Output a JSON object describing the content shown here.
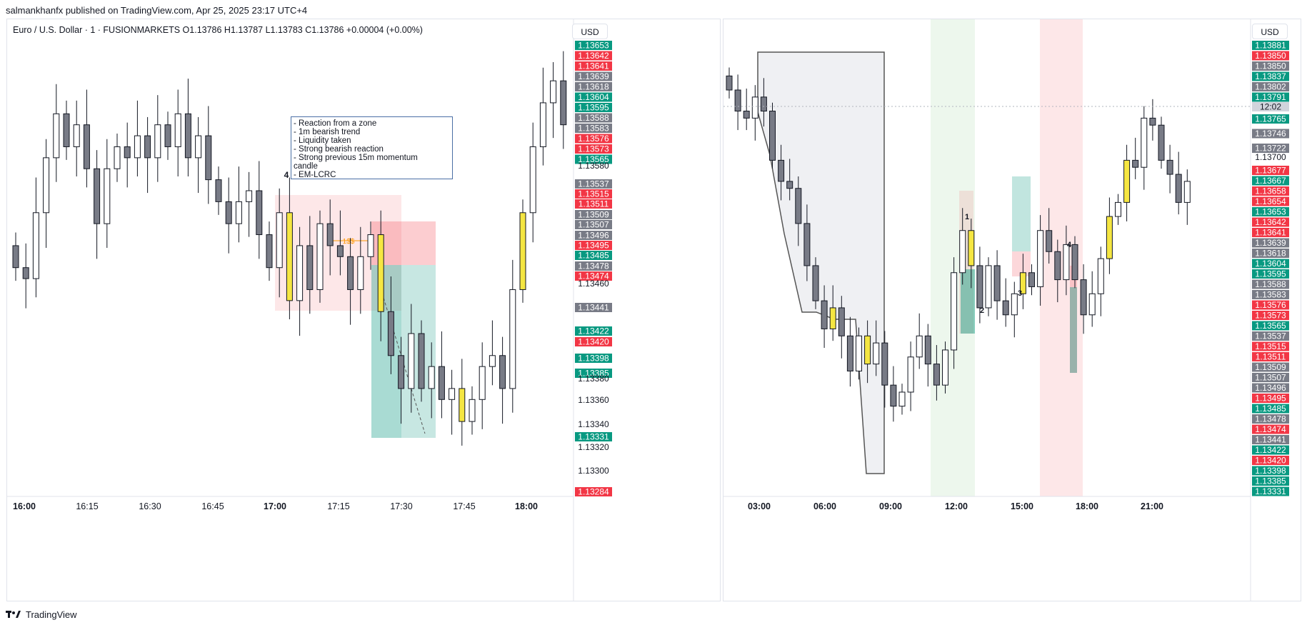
{
  "published_text": "salmankhanfx published on TradingView.com, Apr 25, 2025 23:17 UTC+4",
  "footer": {
    "logo_icon": "tradingview-logo-icon",
    "brand": "TradingView"
  },
  "colors": {
    "red": "#f23645",
    "green": "#089981",
    "grey": "#787b86",
    "up": "#ffffff",
    "highlight": "#f5e642"
  },
  "left_chart": {
    "symbol_header": "Euro / U.S. Dollar · 1 · FUSIONMARKETS  O1.13786  H1.13787  L1.13783  C1.13786  +0.00004 (+0.00%)",
    "currency": "USD",
    "note_lines": [
      "- Reaction from a zone",
      "- 1m bearish trend",
      "- Liquidity taken",
      "- Strong bearish reaction",
      "- Strong previous 15m momentum",
      "candle",
      "- EM-LCRC"
    ],
    "marker_4": "4",
    "liquidity_label": "1$$",
    "chart_data": {
      "type": "candlestick",
      "timeframe": "1",
      "x_ticks": [
        "16:00",
        "16:15",
        "16:30",
        "16:45",
        "17:00",
        "17:15",
        "17:30",
        "17:45",
        "18:00"
      ],
      "y_ticks": [
        "1.13580",
        "1.13460",
        "1.13380",
        "1.13360",
        "1.13340",
        "1.13320",
        "1.13300"
      ],
      "ylim": [
        1.1328,
        1.1367
      ],
      "price_labels": [
        {
          "value": "1.13653",
          "color": "green"
        },
        {
          "value": "1.13642",
          "color": "red"
        },
        {
          "value": "1.13641",
          "color": "red"
        },
        {
          "value": "1.13639",
          "color": "grey"
        },
        {
          "value": "1.13618",
          "color": "grey"
        },
        {
          "value": "1.13604",
          "color": "green"
        },
        {
          "value": "1.13595",
          "color": "green"
        },
        {
          "value": "1.13588",
          "color": "grey"
        },
        {
          "value": "1.13583",
          "color": "grey"
        },
        {
          "value": "1.13576",
          "color": "red"
        },
        {
          "value": "1.13573",
          "color": "red"
        },
        {
          "value": "1.13565",
          "color": "green"
        },
        {
          "value": "1.13537",
          "color": "grey"
        },
        {
          "value": "1.13515",
          "color": "red"
        },
        {
          "value": "1.13511",
          "color": "red"
        },
        {
          "value": "1.13509",
          "color": "grey"
        },
        {
          "value": "1.13507",
          "color": "grey"
        },
        {
          "value": "1.13496",
          "color": "grey"
        },
        {
          "value": "1.13495",
          "color": "red"
        },
        {
          "value": "1.13485",
          "color": "green"
        },
        {
          "value": "1.13478",
          "color": "grey"
        },
        {
          "value": "1.13474",
          "color": "red"
        },
        {
          "value": "1.13441",
          "color": "grey"
        },
        {
          "value": "1.13422",
          "color": "green"
        },
        {
          "value": "1.13420",
          "color": "red"
        },
        {
          "value": "1.13398",
          "color": "green"
        },
        {
          "value": "1.13385",
          "color": "green"
        },
        {
          "value": "1.13331",
          "color": "green"
        },
        {
          "value": "1.13284",
          "color": "red"
        }
      ],
      "series": [
        {
          "name": "",
          "close_path": [
            1.1347,
            1.1346,
            1.1352,
            1.1357,
            1.1361,
            1.1358,
            1.136,
            1.1356,
            1.1351,
            1.1356,
            1.1358,
            1.1357,
            1.1359,
            1.1357,
            1.136,
            1.1358,
            1.1361,
            1.1357,
            1.1359,
            1.1355,
            1.1353,
            1.1351,
            1.1353,
            1.1354,
            1.135,
            1.1347,
            1.1352,
            1.1344,
            1.1349,
            1.1345,
            1.1351,
            1.1349,
            1.1348,
            1.1345,
            1.1348,
            1.135,
            1.1343,
            1.1339,
            1.1336,
            1.1341,
            1.1336,
            1.1338,
            1.1335,
            1.1336,
            1.1333,
            1.1335,
            1.1338,
            1.1339,
            1.1336,
            1.1345,
            1.1352,
            1.1358,
            1.1362,
            1.1364,
            1.136
          ]
        }
      ]
    }
  },
  "right_chart": {
    "currency": "USD",
    "current_time_label": "12:02",
    "markers": [
      "1",
      "2",
      "3",
      "4"
    ],
    "chart_data": {
      "type": "candlestick",
      "x_ticks": [
        "03:00",
        "06:00",
        "09:00",
        "12:00",
        "15:00",
        "18:00",
        "21:00"
      ],
      "y_ticks": [
        "1.13700"
      ],
      "ylim": [
        1.1329,
        1.139
      ],
      "price_labels": [
        {
          "value": "1.13881",
          "color": "green"
        },
        {
          "value": "1.13850",
          "color": "red"
        },
        {
          "value": "1.13850",
          "color": "grey"
        },
        {
          "value": "1.13837",
          "color": "green"
        },
        {
          "value": "1.13802",
          "color": "grey"
        },
        {
          "value": "1.13791",
          "color": "green"
        },
        {
          "value": "1.13765",
          "color": "green"
        },
        {
          "value": "1.13746",
          "color": "grey"
        },
        {
          "value": "1.13722",
          "color": "grey"
        },
        {
          "value": "1.13677",
          "color": "red"
        },
        {
          "value": "1.13667",
          "color": "green"
        },
        {
          "value": "1.13658",
          "color": "red"
        },
        {
          "value": "1.13654",
          "color": "red"
        },
        {
          "value": "1.13653",
          "color": "green"
        },
        {
          "value": "1.13642",
          "color": "red"
        },
        {
          "value": "1.13641",
          "color": "red"
        },
        {
          "value": "1.13639",
          "color": "grey"
        },
        {
          "value": "1.13618",
          "color": "grey"
        },
        {
          "value": "1.13604",
          "color": "green"
        },
        {
          "value": "1.13595",
          "color": "green"
        },
        {
          "value": "1.13588",
          "color": "grey"
        },
        {
          "value": "1.13583",
          "color": "grey"
        },
        {
          "value": "1.13576",
          "color": "red"
        },
        {
          "value": "1.13573",
          "color": "red"
        },
        {
          "value": "1.13565",
          "color": "green"
        },
        {
          "value": "1.13537",
          "color": "grey"
        },
        {
          "value": "1.13515",
          "color": "red"
        },
        {
          "value": "1.13511",
          "color": "red"
        },
        {
          "value": "1.13509",
          "color": "grey"
        },
        {
          "value": "1.13507",
          "color": "grey"
        },
        {
          "value": "1.13496",
          "color": "grey"
        },
        {
          "value": "1.13495",
          "color": "red"
        },
        {
          "value": "1.13485",
          "color": "green"
        },
        {
          "value": "1.13478",
          "color": "grey"
        },
        {
          "value": "1.13474",
          "color": "red"
        },
        {
          "value": "1.13441",
          "color": "grey"
        },
        {
          "value": "1.13422",
          "color": "green"
        },
        {
          "value": "1.13420",
          "color": "red"
        },
        {
          "value": "1.13398",
          "color": "green"
        },
        {
          "value": "1.13385",
          "color": "green"
        },
        {
          "value": "1.13331",
          "color": "green"
        }
      ],
      "series": [
        {
          "name": "",
          "close_path": [
            1.1384,
            1.1381,
            1.138,
            1.1383,
            1.1381,
            1.1374,
            1.1371,
            1.137,
            1.1365,
            1.1359,
            1.1354,
            1.135,
            1.1353,
            1.1349,
            1.1344,
            1.1349,
            1.1345,
            1.1348,
            1.1342,
            1.1339,
            1.1341,
            1.1346,
            1.1349,
            1.1345,
            1.1342,
            1.1347,
            1.1358,
            1.1364,
            1.1359,
            1.1353,
            1.1359,
            1.1354,
            1.1352,
            1.1355,
            1.1358,
            1.1356,
            1.1364,
            1.1361,
            1.1357,
            1.1362,
            1.1357,
            1.1352,
            1.1355,
            1.136,
            1.1366,
            1.1368,
            1.1374,
            1.1373,
            1.138,
            1.1379,
            1.1374,
            1.1372,
            1.1368,
            1.1371
          ]
        }
      ]
    }
  }
}
